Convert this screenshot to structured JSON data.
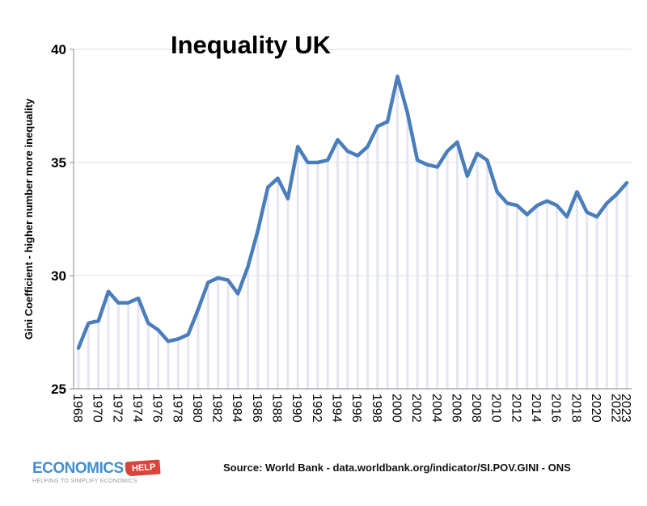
{
  "chart_data": {
    "type": "line",
    "title": "Inequality UK",
    "ylabel": "Gini Coefficient - higher number more inequality",
    "xlabel": "",
    "ylim": [
      25,
      40
    ],
    "yticks": [
      25,
      30,
      35,
      40
    ],
    "grid": true,
    "line_color": "#4a7ebb",
    "dropline_color": "#e4e6f2",
    "x": [
      1968,
      1969,
      1970,
      1971,
      1972,
      1973,
      1974,
      1975,
      1976,
      1977,
      1978,
      1979,
      1980,
      1981,
      1982,
      1983,
      1984,
      1985,
      1986,
      1987,
      1988,
      1989,
      1990,
      1991,
      1992,
      1993,
      1994,
      1995,
      1996,
      1997,
      1998,
      1999,
      2000,
      2001,
      2002,
      2003,
      2004,
      2005,
      2006,
      2007,
      2008,
      2009,
      2010,
      2011,
      2012,
      2013,
      2014,
      2015,
      2016,
      2017,
      2018,
      2019,
      2020,
      2021,
      2022,
      2023
    ],
    "values": [
      26.8,
      27.9,
      28.0,
      29.3,
      28.8,
      28.8,
      29.0,
      27.9,
      27.6,
      27.1,
      27.2,
      27.4,
      28.5,
      29.7,
      29.9,
      29.8,
      29.2,
      30.4,
      32.0,
      33.9,
      34.3,
      33.4,
      35.7,
      35.0,
      35.0,
      35.1,
      36.0,
      35.5,
      35.3,
      35.7,
      36.6,
      36.8,
      38.8,
      37.2,
      35.1,
      34.9,
      34.8,
      35.5,
      35.9,
      34.4,
      35.4,
      35.1,
      33.7,
      33.2,
      33.1,
      32.7,
      33.1,
      33.3,
      33.1,
      32.6,
      33.7,
      32.8,
      32.6,
      33.2,
      33.6,
      34.1
    ],
    "xtick_labels": [
      "1968",
      "1970",
      "1972",
      "1974",
      "1976",
      "1978",
      "1980",
      "1982",
      "1984",
      "1986",
      "1988",
      "1990",
      "1992",
      "1994",
      "1996",
      "1998",
      "2000",
      "2002",
      "2004",
      "2006",
      "2008",
      "2010",
      "2012",
      "2014",
      "2016",
      "2018",
      "2020",
      "2022",
      "2023"
    ]
  },
  "footer": {
    "source": "Source: World Bank - data.worldbank.org/indicator/SI.POV.GINI - ONS",
    "logo_main": "ECONOMICS",
    "logo_help": "HELP",
    "logo_tagline": "HELPING TO SIMPLIFY ECONOMICS"
  }
}
